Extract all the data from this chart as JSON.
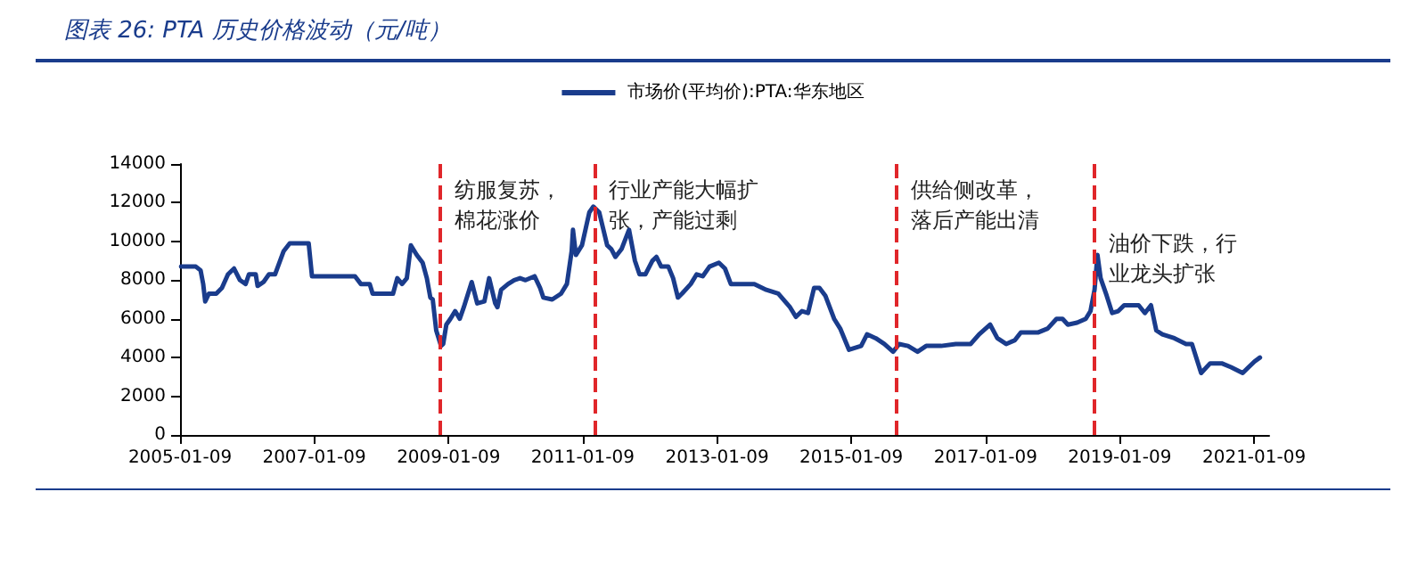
{
  "chart_data": {
    "type": "line",
    "title": "图表 26:  PTA 历史价格波动（元/吨）",
    "x": [
      "2005-01-15",
      "2005-04-05",
      "2005-05-01",
      "2005-05-15",
      "2005-05-26",
      "2005-06-15",
      "2005-07-25",
      "2005-08-25",
      "2005-09-27",
      "2005-10-30",
      "2005-12-01",
      "2006-01-01",
      "2006-01-19",
      "2006-02-25",
      "2006-03-07",
      "2006-04-08",
      "2006-05-08",
      "2006-06-10",
      "2006-07-27",
      "2006-08-29",
      "2006-12-10",
      "2006-12-28",
      "2007-08-19",
      "2007-09-20",
      "2007-11-07",
      "2007-11-23",
      "2008-03-13",
      "2008-04-05",
      "2008-05-01",
      "2008-05-27",
      "2008-06-18",
      "2008-07-20",
      "2008-08-21",
      "2008-09-13",
      "2008-10-02",
      "2008-10-15",
      "2008-11-03",
      "2008-11-29",
      "2008-12-11",
      "2008-12-28",
      "2009-01-19",
      "2009-02-14",
      "2009-03-11",
      "2009-04-02",
      "2009-05-15",
      "2009-06-14",
      "2009-07-23",
      "2009-08-18",
      "2009-09-20",
      "2009-10-02",
      "2009-10-22",
      "2009-11-29",
      "2010-01-01",
      "2010-02-02",
      "2010-03-04",
      "2010-04-22",
      "2010-05-22",
      "2010-06-09",
      "2010-07-27",
      "2010-09-13",
      "2010-10-15",
      "2010-11-10",
      "2010-11-17",
      "2010-12-03",
      "2011-01-05",
      "2011-02-14",
      "2011-03-08",
      "2011-04-09",
      "2011-05-22",
      "2011-06-14",
      "2011-07-06",
      "2011-08-08",
      "2011-09-18",
      "2011-10-20",
      "2011-11-14",
      "2011-12-16",
      "2012-01-23",
      "2012-02-14",
      "2012-03-11",
      "2012-04-19",
      "2012-05-15",
      "2012-06-10",
      "2012-07-02",
      "2012-08-19",
      "2012-09-20",
      "2012-10-23",
      "2012-11-29",
      "2013-01-19",
      "2013-02-21",
      "2013-03-25",
      "2013-05-30",
      "2013-07-31",
      "2013-10-04",
      "2013-12-08",
      "2014-02-10",
      "2014-03-14",
      "2014-04-16",
      "2014-05-19",
      "2014-06-21",
      "2014-07-20",
      "2014-08-21",
      "2014-10-08",
      "2014-11-10",
      "2014-12-28",
      "2015-03-04",
      "2015-04-05",
      "2015-05-22",
      "2015-07-08",
      "2015-08-25",
      "2015-09-27",
      "2015-11-14",
      "2016-01-05",
      "2016-02-21",
      "2016-05-12",
      "2016-07-31",
      "2016-10-20",
      "2016-12-05",
      "2017-02-03",
      "2017-03-14",
      "2017-05-01",
      "2017-06-18",
      "2017-07-20",
      "2017-10-23",
      "2017-12-13",
      "2018-01-30",
      "2018-03-04",
      "2018-04-02",
      "2018-05-22",
      "2018-07-08",
      "2018-08-03",
      "2018-08-25",
      "2018-09-10",
      "2018-09-27",
      "2018-10-30",
      "2018-11-29",
      "2019-01-01",
      "2019-02-02",
      "2019-04-22",
      "2019-05-26",
      "2019-06-28",
      "2019-07-27",
      "2019-08-29",
      "2019-11-02",
      "2020-01-05",
      "2020-02-06",
      "2020-03-27",
      "2020-05-15",
      "2020-07-17",
      "2020-09-06",
      "2020-11-08",
      "2020-12-10",
      "2021-01-12",
      "2021-02-10"
    ],
    "series": [
      {
        "name": "市场价(平均价):PTA:华东地区",
        "color": "#1a3c8c",
        "values": [
          8700,
          8700,
          8500,
          7800,
          6900,
          7300,
          7300,
          7600,
          8300,
          8600,
          8000,
          7800,
          8300,
          8300,
          7700,
          7900,
          8300,
          8300,
          9500,
          9900,
          9900,
          8200,
          8200,
          7800,
          7800,
          7300,
          7300,
          8100,
          7800,
          8100,
          9800,
          9300,
          8900,
          8100,
          7100,
          7000,
          5400,
          4600,
          4700,
          5700,
          6000,
          6400,
          6000,
          6600,
          7900,
          6800,
          6900,
          8100,
          6800,
          6600,
          7500,
          7800,
          8000,
          8100,
          8000,
          8200,
          7600,
          7100,
          7000,
          7300,
          7800,
          9500,
          10600,
          9300,
          9800,
          11500,
          11800,
          11500,
          9800,
          9600,
          9200,
          9600,
          10600,
          9000,
          8300,
          8300,
          9000,
          9200,
          8700,
          8700,
          8100,
          7100,
          7300,
          7800,
          8300,
          8200,
          8700,
          8900,
          8600,
          7800,
          7800,
          7800,
          7500,
          7300,
          6600,
          6100,
          6400,
          6300,
          7600,
          7600,
          7200,
          6000,
          5500,
          4400,
          4600,
          5200,
          5000,
          4700,
          4300,
          4700,
          4600,
          4300,
          4600,
          4600,
          4700,
          4700,
          5200,
          5700,
          5000,
          4700,
          4900,
          5300,
          5300,
          5500,
          6000,
          6000,
          5700,
          5800,
          6000,
          6400,
          7500,
          9300,
          8100,
          7200,
          6300,
          6400,
          6700,
          6700,
          6300,
          6700,
          5400,
          5200,
          5000,
          4700,
          4700,
          3200,
          3700,
          3700,
          3500,
          3200,
          3500,
          3800,
          4000
        ]
      }
    ],
    "xlim": [
      "2005-01-09",
      "2021-04-01"
    ],
    "xticks": [
      "2005-01-09",
      "2007-01-09",
      "2009-01-09",
      "2011-01-09",
      "2013-01-09",
      "2015-01-09",
      "2017-01-09",
      "2019-01-09",
      "2021-01-09"
    ],
    "ylim": [
      0,
      14000
    ],
    "yticks": [
      0,
      2000,
      4000,
      6000,
      8000,
      10000,
      12000,
      14000
    ],
    "ref_lines": [
      {
        "axis": "x",
        "value": "2008-11-25",
        "color": "#e0262a",
        "line_style": "dashed"
      },
      {
        "axis": "x",
        "value": "2011-03-15",
        "color": "#e0262a",
        "line_style": "dashed"
      },
      {
        "axis": "x",
        "value": "2015-09-12",
        "color": "#e0262a",
        "line_style": "dashed"
      },
      {
        "axis": "x",
        "value": "2018-08-25",
        "color": "#e0262a",
        "line_style": "dashed"
      }
    ],
    "annotations": [
      "纺服复苏，棉花涨价",
      "行业产能大幅扩张，产能过剩",
      "供给侧改革，落后产能出清",
      "油价下跌，行业龙头扩张"
    ],
    "grid": false,
    "legend": "top",
    "marker": "none",
    "line_style": "solid"
  }
}
